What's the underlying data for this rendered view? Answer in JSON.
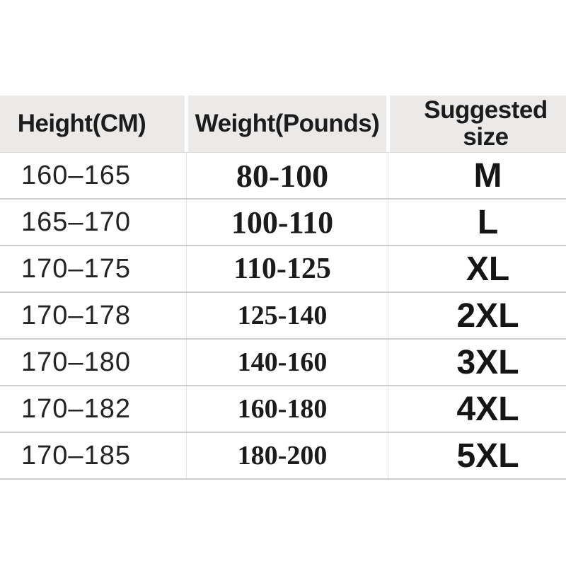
{
  "meta": {
    "description": "Clothing size chart table",
    "background": "#ffffff"
  },
  "colors": {
    "header_bg": "#eceae8",
    "row_bg": "#ffffff",
    "separator": "#cfcecd",
    "column_divider": "#ffffff",
    "text": "#1f1f1f"
  },
  "chart_data": {
    "type": "table",
    "title": "",
    "columns": [
      "Height(CM)",
      "Weight(Pounds)",
      "Suggested size"
    ],
    "rows": [
      [
        "160–165",
        "80-100",
        "M"
      ],
      [
        "165–170",
        "100-110",
        "L"
      ],
      [
        "170–175",
        "110-125",
        "XL"
      ],
      [
        "170–178",
        "125-140",
        "2XL"
      ],
      [
        "170–180",
        "140-160",
        "3XL"
      ],
      [
        "170–182",
        "160-180",
        "4XL"
      ],
      [
        "170–185",
        "180-200",
        "5XL"
      ]
    ]
  }
}
